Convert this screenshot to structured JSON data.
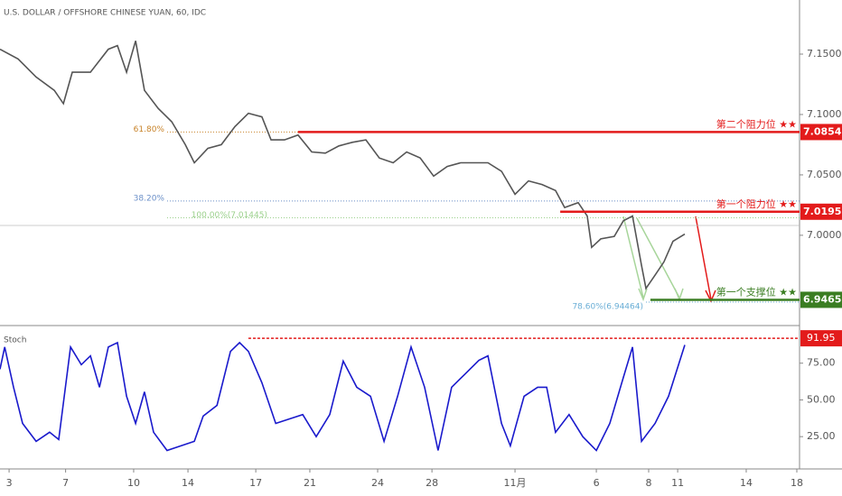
{
  "chart_data": [
    {
      "type": "line",
      "title": "U.S. DOLLAR / OFFSHORE CHINESE YUAN, 60, IDC",
      "color": "#555555",
      "xlim": [
        -0.37,
        32.17
      ],
      "ylim": [
        6.926,
        7.1948
      ],
      "xticks": [
        {
          "value": 0,
          "label": "3"
        },
        {
          "value": 2.3,
          "label": "7"
        },
        {
          "value": 5.07,
          "label": "10"
        },
        {
          "value": 7.28,
          "label": "14"
        },
        {
          "value": 10.04,
          "label": "17"
        },
        {
          "value": 12.24,
          "label": "21"
        },
        {
          "value": 15.0,
          "label": "24"
        },
        {
          "value": 17.21,
          "label": "28"
        },
        {
          "value": 20.59,
          "label": "11月"
        },
        {
          "value": 23.9,
          "label": "6"
        },
        {
          "value": 26.03,
          "label": "8"
        },
        {
          "value": 27.21,
          "label": "11"
        },
        {
          "value": 30.0,
          "label": "14"
        },
        {
          "value": 32.06,
          "label": "18"
        }
      ],
      "yticks": [
        {
          "value": 7.15,
          "label": "7.15000"
        },
        {
          "value": 7.1,
          "label": "7.10000"
        },
        {
          "value": 7.05,
          "label": "7.05000"
        },
        {
          "value": 7.0,
          "label": "7.00000"
        }
      ],
      "x": [
        -0.37,
        0.37,
        1.1,
        1.84,
        2.21,
        2.57,
        3.31,
        4.04,
        4.41,
        4.78,
        5.15,
        5.51,
        6.07,
        6.62,
        7.17,
        7.54,
        8.09,
        8.64,
        9.19,
        9.74,
        10.29,
        10.66,
        11.21,
        11.76,
        12.32,
        12.87,
        13.42,
        13.97,
        14.52,
        15.07,
        15.63,
        16.18,
        16.73,
        17.28,
        17.83,
        18.38,
        18.93,
        19.49,
        20.04,
        20.59,
        21.14,
        21.69,
        22.24,
        22.61,
        23.16,
        23.53,
        23.71,
        24.08,
        24.63,
        25.0,
        25.37,
        25.74,
        25.92,
        26.29,
        26.65,
        27.02,
        27.5
      ],
      "values": [
        7.154,
        7.146,
        7.131,
        7.12,
        7.109,
        7.135,
        7.135,
        7.154,
        7.157,
        7.135,
        7.161,
        7.12,
        7.105,
        7.094,
        7.075,
        7.06,
        7.072,
        7.075,
        7.09,
        7.101,
        7.098,
        7.079,
        7.079,
        7.083,
        7.069,
        7.068,
        7.074,
        7.077,
        7.079,
        7.064,
        7.06,
        7.069,
        7.064,
        7.049,
        7.057,
        7.06,
        7.06,
        7.06,
        7.053,
        7.034,
        7.045,
        7.042,
        7.037,
        7.023,
        7.027,
        7.016,
        6.99,
        6.997,
        6.999,
        7.012,
        7.016,
        6.975,
        6.956,
        6.967,
        6.978,
        6.995,
        7.001
      ],
      "levels": [
        {
          "label": "第二个阻力位 ★★",
          "value": 7.08547,
          "value_label": "7.08547",
          "color": "#e31b1b",
          "from": 11.76
        },
        {
          "label": "第一个阻力位 ★★",
          "value": 7.0195,
          "value_label": "7.01950",
          "color": "#e31b1b",
          "from": 22.43
        },
        {
          "label": "第一个支撑位 ★★",
          "value": 6.94657,
          "value_label": "6.94657",
          "color": "#3a7d22",
          "from": 26.1
        }
      ],
      "fib": [
        {
          "label": "61.80%",
          "value": 7.0855,
          "color": "#c8832a"
        },
        {
          "label": "38.20%",
          "value": 7.0284,
          "color": "#6a8fc8"
        },
        {
          "label": "100.00%(7.01445)",
          "value": 7.01445,
          "color": "#9bd08c"
        },
        {
          "label": "78.60%(6.94464)",
          "value": 6.94464,
          "color": "#6aaed6"
        }
      ]
    },
    {
      "type": "line",
      "title": "Stoch",
      "color": "#1a1acc",
      "xlim": [
        -0.37,
        32.17
      ],
      "ylim": [
        3,
        100
      ],
      "yticks": [
        {
          "value": 75,
          "label": "75.00"
        },
        {
          "value": 50,
          "label": "50.00"
        },
        {
          "value": 25,
          "label": "25.00"
        }
      ],
      "x": [
        -0.37,
        -0.18,
        0.18,
        0.55,
        1.1,
        1.65,
        2.02,
        2.5,
        2.94,
        3.31,
        3.68,
        4.04,
        4.41,
        4.78,
        5.15,
        5.51,
        5.88,
        6.43,
        6.99,
        7.54,
        7.9,
        8.46,
        9.01,
        9.38,
        9.74,
        10.29,
        10.85,
        11.4,
        11.95,
        12.5,
        13.05,
        13.6,
        14.15,
        14.71,
        15.26,
        15.81,
        16.36,
        16.91,
        17.46,
        18.01,
        18.57,
        19.12,
        19.49,
        20.04,
        20.4,
        20.96,
        21.51,
        21.88,
        22.24,
        22.79,
        23.35,
        23.9,
        24.45,
        24.99,
        25.37,
        25.74,
        26.29,
        26.84,
        27.5
      ],
      "values": [
        70.9,
        86,
        58.6,
        34,
        21.8,
        28,
        23,
        86,
        74,
        80,
        58.6,
        86,
        89,
        52.5,
        34,
        55.5,
        28,
        15.6,
        18.7,
        21.8,
        39,
        46.3,
        83,
        89,
        83,
        61.7,
        34,
        37,
        40,
        25,
        40,
        76.4,
        58.6,
        52.5,
        21.8,
        52.5,
        86,
        58.6,
        15.6,
        58.6,
        67.8,
        77,
        80,
        34,
        18.7,
        52.5,
        58.6,
        58.6,
        28,
        40,
        25,
        15.6,
        34,
        64.7,
        86,
        21.8,
        34,
        52.5,
        87.4
      ],
      "level": {
        "value": 91.95,
        "color": "#e31b1b",
        "from": 9.74
      }
    }
  ]
}
